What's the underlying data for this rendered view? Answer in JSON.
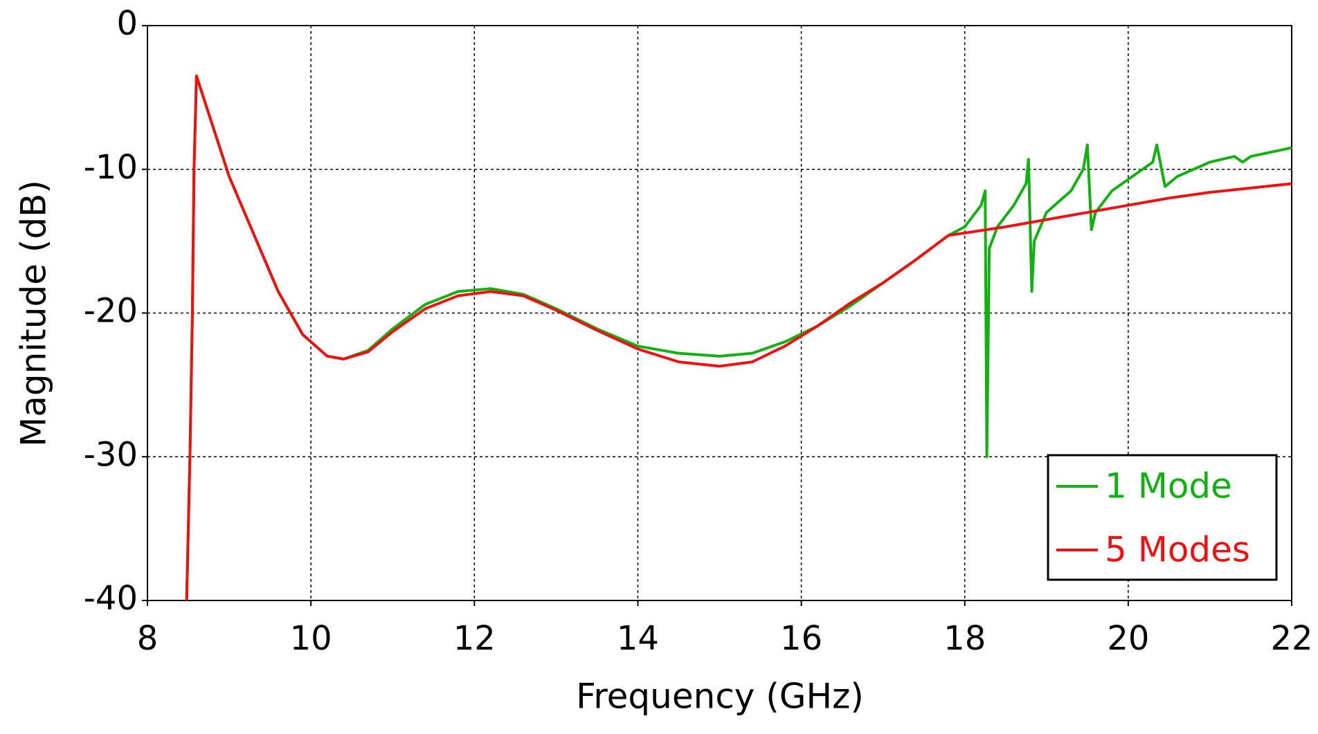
{
  "chart_data": {
    "type": "line",
    "xlabel": "Frequency (GHz)",
    "ylabel": "Magnitude (dB)",
    "xlim": [
      8,
      22
    ],
    "xticks": [
      8,
      10,
      12,
      14,
      16,
      18,
      20,
      22
    ],
    "ylim": [
      -40,
      0
    ],
    "yticks": [
      -40,
      -30,
      -20,
      -10,
      0
    ],
    "grid": true,
    "legend": "lower right",
    "series": [
      {
        "name": "1 Mode",
        "color": "#12b012",
        "x": [
          8.48,
          8.52,
          8.55,
          8.57,
          8.6,
          8.8,
          9.0,
          9.3,
          9.6,
          9.9,
          10.2,
          10.4,
          10.7,
          11.0,
          11.4,
          11.8,
          12.2,
          12.6,
          13.0,
          13.5,
          14.0,
          14.5,
          15.0,
          15.4,
          15.8,
          16.2,
          16.6,
          17.0,
          17.4,
          17.8,
          18.0,
          18.2,
          18.25,
          18.27,
          18.3,
          18.4,
          18.6,
          18.75,
          18.78,
          18.82,
          18.85,
          19.0,
          19.3,
          19.45,
          19.5,
          19.55,
          19.6,
          19.8,
          20.0,
          20.3,
          20.35,
          20.45,
          20.6,
          21.0,
          21.3,
          21.4,
          21.5,
          22.0
        ],
        "values": [
          -40,
          -30,
          -20,
          -10,
          -3.5,
          -7,
          -10.5,
          -14.5,
          -18.5,
          -21.5,
          -23,
          -23.2,
          -22.6,
          -21.1,
          -19.4,
          -18.5,
          -18.3,
          -18.7,
          -19.7,
          -21.1,
          -22.3,
          -22.8,
          -23.0,
          -22.8,
          -22.0,
          -20.9,
          -19.5,
          -17.9,
          -16.3,
          -14.6,
          -14.0,
          -12.5,
          -11.5,
          -30,
          -15.5,
          -14.0,
          -12.5,
          -11.0,
          -9.3,
          -18.5,
          -15,
          -13.0,
          -11.5,
          -10.0,
          -8.3,
          -14.2,
          -13.0,
          -11.5,
          -10.7,
          -9.5,
          -8.3,
          -11.2,
          -10.5,
          -9.5,
          -9.1,
          -9.5,
          -9.1,
          -8.5
        ]
      },
      {
        "name": "5 Modes",
        "color": "#ee1111",
        "x": [
          8.48,
          8.52,
          8.55,
          8.57,
          8.6,
          8.8,
          9.0,
          9.3,
          9.6,
          9.9,
          10.2,
          10.4,
          10.7,
          11.0,
          11.4,
          11.8,
          12.2,
          12.6,
          13.0,
          13.5,
          14.0,
          14.5,
          15.0,
          15.4,
          15.8,
          16.2,
          16.6,
          17.0,
          17.4,
          17.8,
          18.5,
          19.0,
          19.5,
          20.0,
          20.5,
          21.0,
          21.5,
          22.0
        ],
        "values": [
          -40,
          -30,
          -20,
          -10,
          -3.5,
          -7,
          -10.5,
          -14.5,
          -18.5,
          -21.5,
          -23,
          -23.2,
          -22.7,
          -21.3,
          -19.7,
          -18.8,
          -18.5,
          -18.8,
          -19.8,
          -21.2,
          -22.5,
          -23.4,
          -23.7,
          -23.4,
          -22.3,
          -20.9,
          -19.3,
          -17.9,
          -16.3,
          -14.6,
          -14.0,
          -13.5,
          -13.0,
          -12.5,
          -12.0,
          -11.6,
          -11.3,
          -11.0
        ]
      }
    ]
  }
}
